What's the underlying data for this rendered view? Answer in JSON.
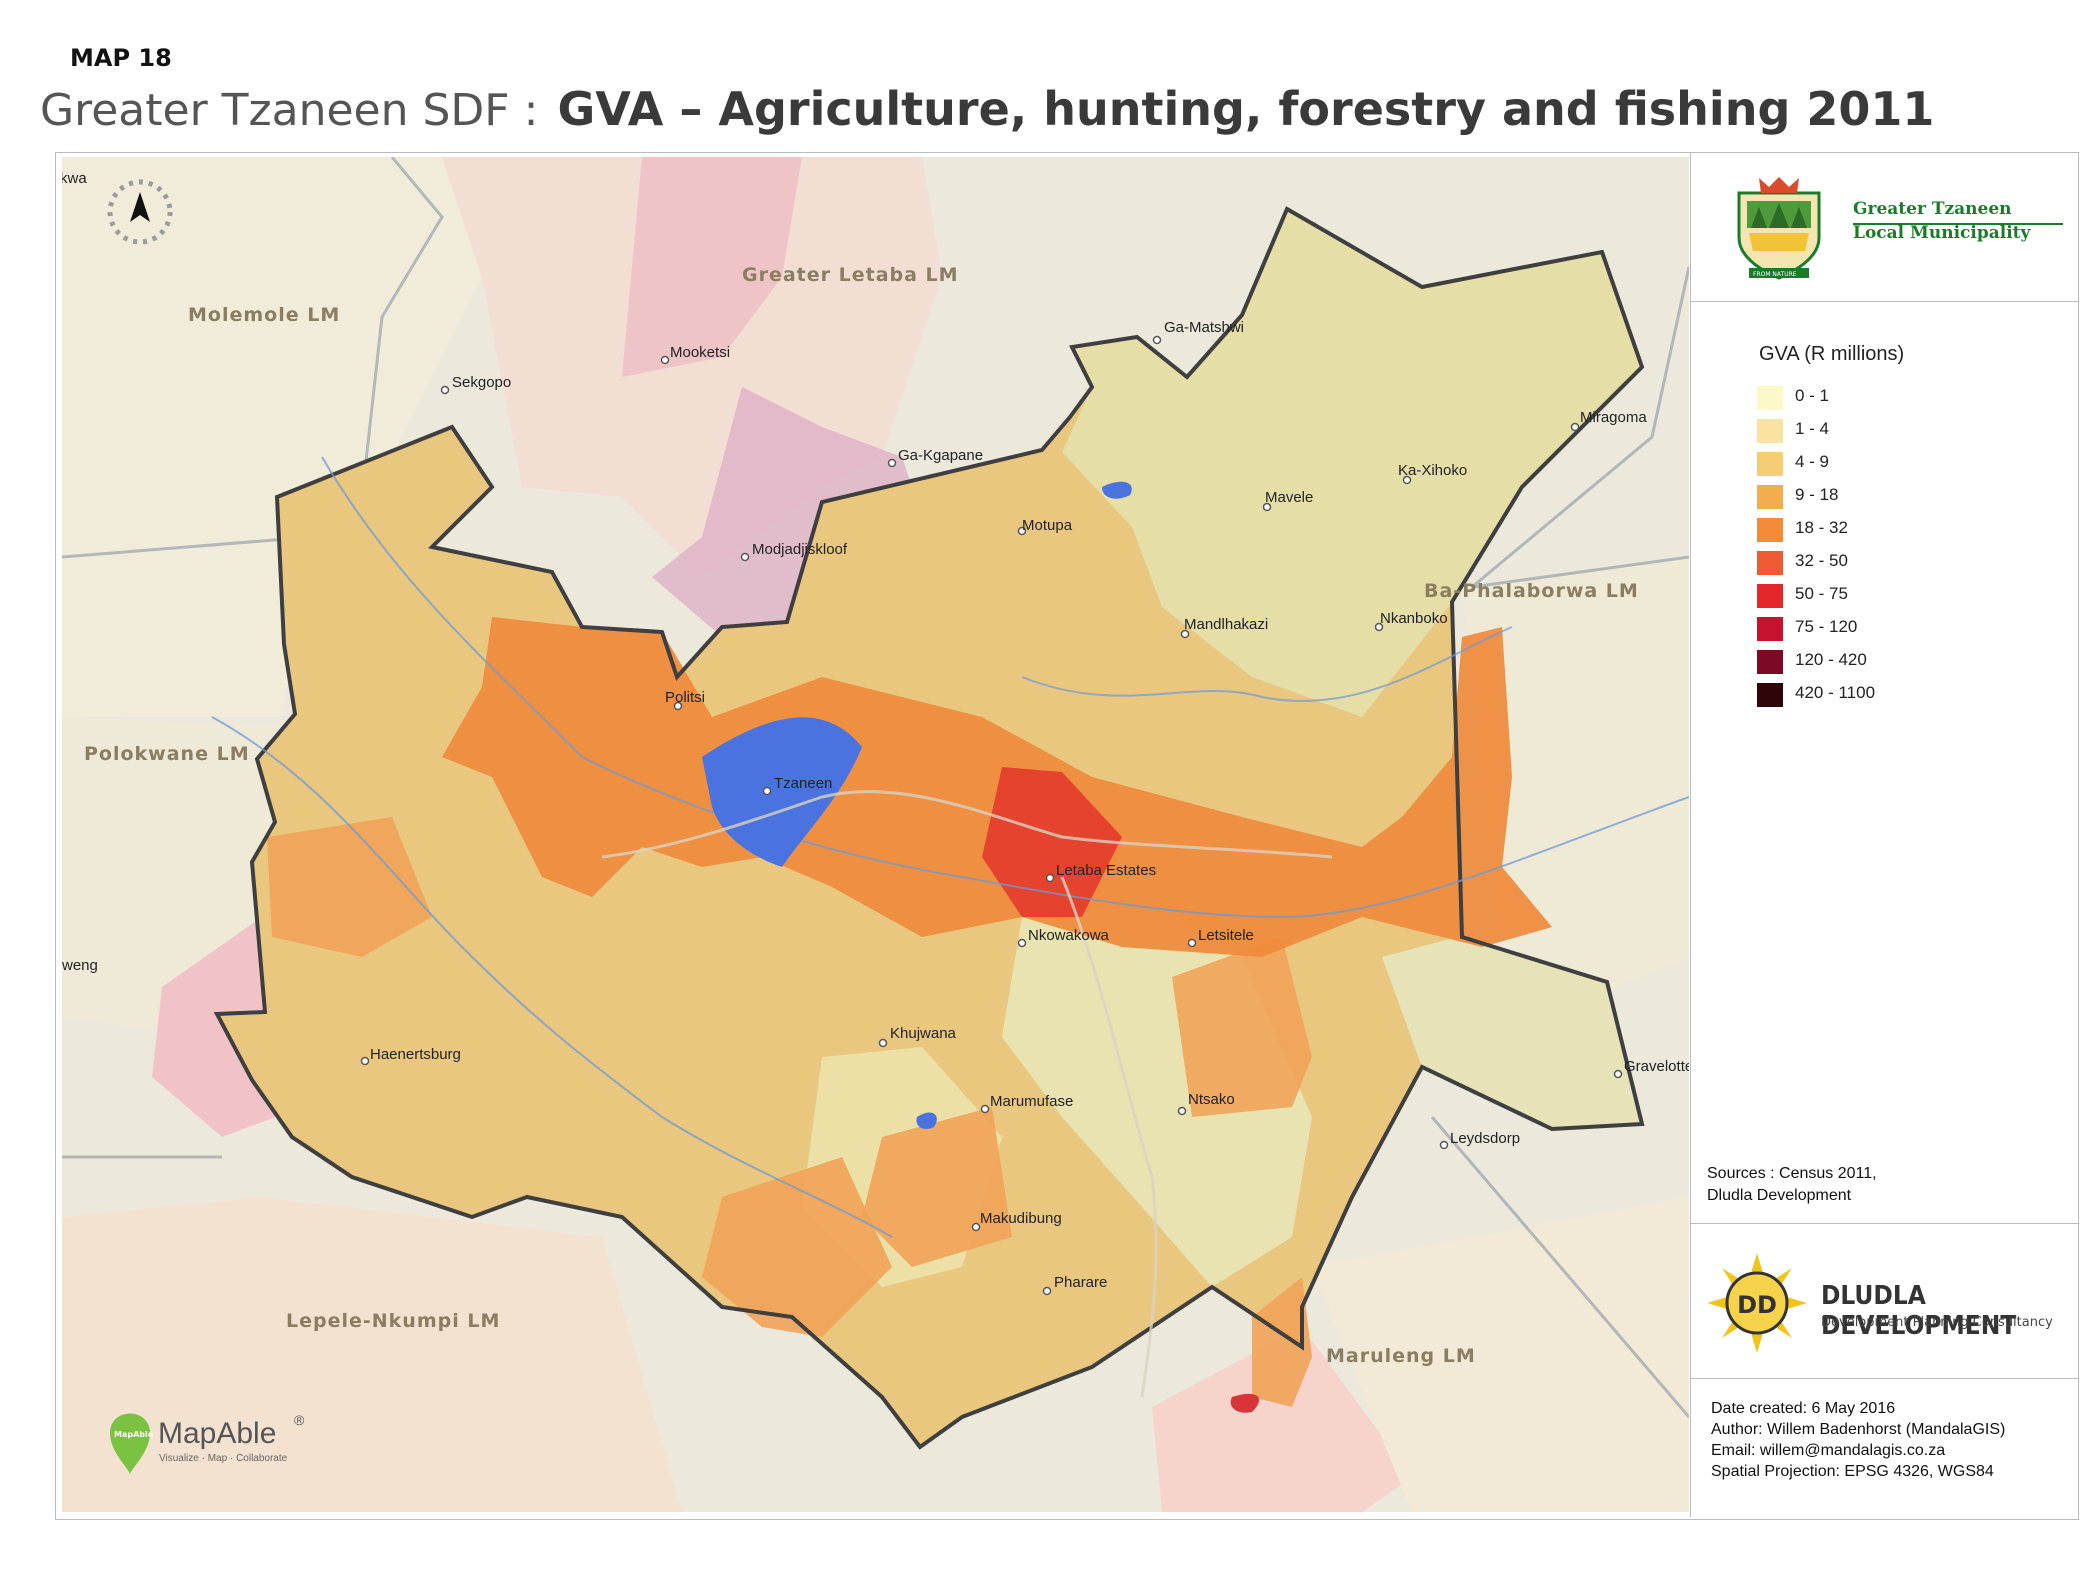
{
  "map_number": "MAP 18",
  "title_prefix": "Greater Tzaneen SDF :",
  "title_main": "GVA – Agriculture, hunting, forestry and fishing 2011",
  "municipality": {
    "line1": "Greater Tzaneen",
    "line2": "Local Municipality",
    "motto": "FROM NATURE"
  },
  "legend": {
    "title": "GVA (R millions)",
    "items": [
      {
        "label": "0 - 1",
        "color": "#fdf8c8"
      },
      {
        "label": "1 - 4",
        "color": "#f9e3a0"
      },
      {
        "label": "4 - 9",
        "color": "#f6cc75"
      },
      {
        "label": "9 - 18",
        "color": "#f4ad4e"
      },
      {
        "label": "18 - 32",
        "color": "#f28c3a"
      },
      {
        "label": "32 - 50",
        "color": "#ee5a33"
      },
      {
        "label": "50 - 75",
        "color": "#e2282a"
      },
      {
        "label": "75 - 120",
        "color": "#c4122f"
      },
      {
        "label": "120 - 420",
        "color": "#7d0a24"
      },
      {
        "label": "420 - 1100",
        "color": "#2e0508"
      }
    ]
  },
  "sources": {
    "line1": "Sources : Census 2011,",
    "line2": "Dludla Development"
  },
  "dludla": {
    "logo_text": "DD",
    "name": "DLUDLA DEVELOPMENT",
    "tagline": "Development  Planning Consultancy"
  },
  "credits": {
    "date": "Date created:  6 May 2016",
    "author": "Author: Willem Badenhorst (MandalaGIS)",
    "email": "Email: willem@mandalagis.co.za",
    "projection": "Spatial Projection:  EPSG 4326, WGS84"
  },
  "mapable": {
    "brand": "MapAble",
    "mark": "®",
    "tagline": "Visualize · Map · Collaborate",
    "badge": "MapAble"
  },
  "north_arrow": "north-arrow",
  "region_labels": {
    "greater_letaba": "Greater Letaba LM",
    "molemole": "Molemole LM",
    "polokwane": "Polokwane LM",
    "ba_phalaborwa": "Ba-Phalaborwa LM",
    "lepele_nkumpi": "Lepele-Nkumpi LM",
    "maruleng": "Maruleng LM"
  },
  "places": {
    "kwa": "kwa",
    "weng": "weng",
    "sekgopo": "Sekgopo",
    "mooketsi": "Mooketsi",
    "ga_kgapane": "Ga-Kgapane",
    "modjadjiskloof": "Modjadjiskloof",
    "ga_matshwi": "Ga-Matshwi",
    "miragoma": "Miragoma",
    "ka_xihoko": "Ka-Xihoko",
    "mavele": "Mavele",
    "motupa": "Motupa",
    "mandlhakazi": "Mandlhakazi",
    "nkanboko": "Nkanboko",
    "politsi": "Politsi",
    "tzaneen": "Tzaneen",
    "letaba_estates": "Letaba Estates",
    "nkowakowa": "Nkowakowa",
    "letsitele": "Letsitele",
    "haenertsburg": "Haenertsburg",
    "khujwana": "Khujwana",
    "marumufase": "Marumufase",
    "ntsako": "Ntsako",
    "gravelotte": "Gravelotte",
    "leydsdorp": "Leydsdorp",
    "makudibung": "Makudibung",
    "pharare": "Pharare"
  }
}
